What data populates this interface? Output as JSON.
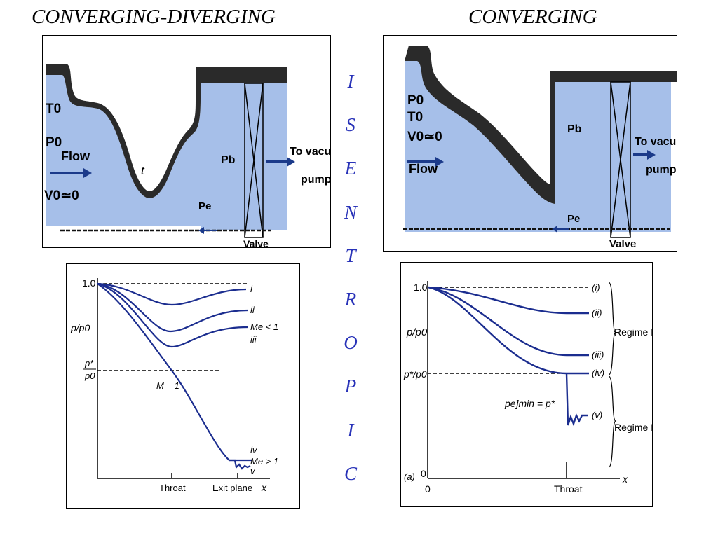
{
  "headings": {
    "converging_diverging": "CONVERGING-DIVERGING",
    "converging": "CONVERGING"
  },
  "vertical_word": [
    "I",
    "S",
    "E",
    "N",
    "T",
    "R",
    "O",
    "P",
    "I",
    "C"
  ],
  "colors": {
    "fluid": "#a6bfe9",
    "wall": "#2a2a2a",
    "curve": "#1b2d8f",
    "letters": "#2832b8",
    "arrow": "#1b3a8a"
  },
  "cd_nozzle": {
    "t0": "T0",
    "p0": "P0",
    "flow": "Flow",
    "v0": "V0≃0",
    "throat_mark": "t",
    "pb": "Pb",
    "pe": "Pe",
    "vacuum_line1": "To vacuum",
    "vacuum_line2": "pump",
    "valve": "Valve"
  },
  "c_nozzle": {
    "p0": "P0",
    "t0": "T0",
    "v0": "V0≃0",
    "flow": "Flow",
    "pb": "Pb",
    "pe": "Pe",
    "vacuum_line1": "To vacuum",
    "vacuum_line2": "pump",
    "valve": "Valve"
  },
  "cd_chart": {
    "y_top": "1.0",
    "y_ratio": "p/p0",
    "y_star_num": "p*",
    "y_star_den": "p0",
    "curve_i": "i",
    "curve_ii": "ii",
    "curve_iii": "iii",
    "mach_subsonic": "Me < 1",
    "mach_one": "M = 1",
    "curve_iv": "iv",
    "mach_supersonic": "Me > 1",
    "curve_v": "v",
    "throat": "Throat",
    "exit_plane": "Exit plane",
    "x": "x"
  },
  "c_chart": {
    "y_top": "1.0",
    "y_ratio": "p/p0",
    "y_star": "p*/p0",
    "label_i": "(i)",
    "label_ii": "(ii)",
    "label_iii": "(iii)",
    "label_iv": "(iv)",
    "label_v": "(v)",
    "pe_min": "pe]min = p*",
    "regime_1": "Regime I",
    "regime_2": "Regime II",
    "part": "(a)",
    "y_zero": "0",
    "x_zero": "0",
    "throat": "Throat",
    "x": "x"
  }
}
